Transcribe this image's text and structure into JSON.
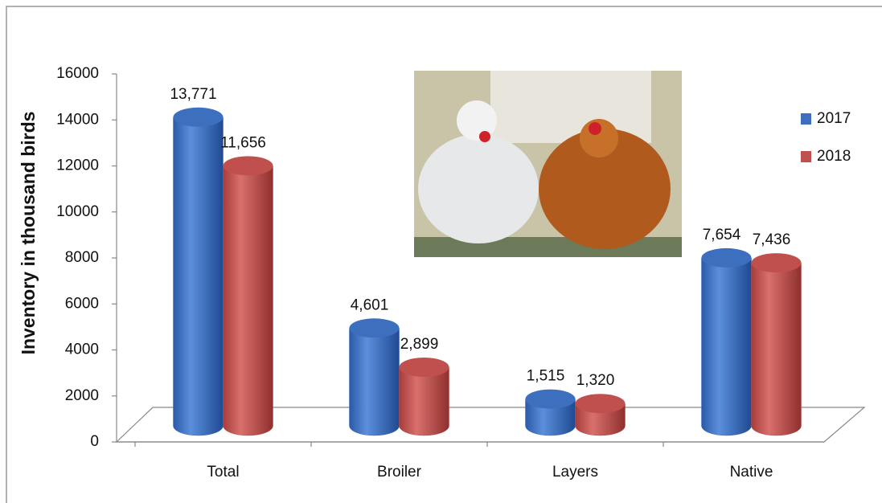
{
  "chart_data": {
    "type": "bar",
    "y_axis_label": "Inventory in thousand birds",
    "categories": [
      "Total",
      "Broiler",
      "Layers",
      "Native"
    ],
    "series": [
      {
        "name": "2017",
        "color": "#3d6fbf",
        "values": [
          13771,
          4601,
          1515,
          7654
        ],
        "value_labels": [
          "13,771",
          "4,601",
          "1,515",
          "7,654"
        ]
      },
      {
        "name": "2018",
        "color": "#c0504d",
        "values": [
          11656,
          2899,
          1320,
          7436
        ],
        "value_labels": [
          "11,656",
          "2,899",
          "1,320",
          "7,436"
        ]
      }
    ],
    "ylim": [
      0,
      16000
    ],
    "yticks": [
      0,
      2000,
      4000,
      6000,
      8000,
      10000,
      12000,
      14000,
      16000
    ],
    "legend": "right",
    "grid": false
  }
}
